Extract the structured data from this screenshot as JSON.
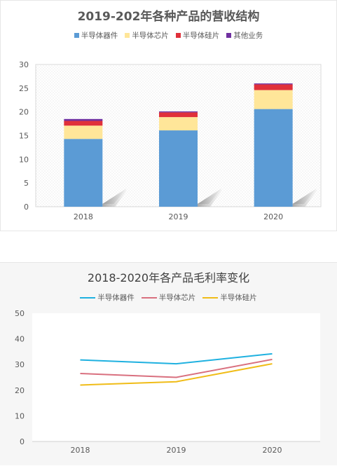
{
  "chart_data": [
    {
      "type": "bar",
      "stacked": true,
      "title": "2019-202年各种产品的营收结构",
      "categories": [
        "2018",
        "2019",
        "2020"
      ],
      "series": [
        {
          "name": "半导体器件",
          "color": "#5b9bd5",
          "values": [
            14.3,
            16.1,
            20.6
          ]
        },
        {
          "name": "半导体芯片",
          "color": "#ffe699",
          "values": [
            2.8,
            2.8,
            4.0
          ]
        },
        {
          "name": "半导体硅片",
          "color": "#e0303a",
          "values": [
            1.0,
            1.0,
            1.2
          ]
        },
        {
          "name": "其他业务",
          "color": "#7030a0",
          "values": [
            0.4,
            0.2,
            0.2
          ]
        }
      ],
      "ylim": [
        0,
        30
      ],
      "yticks": [
        "0",
        "5",
        "10",
        "15",
        "20",
        "25",
        "30"
      ],
      "legend": "top",
      "grid": false
    },
    {
      "type": "line",
      "title": "2018-2020年各产品毛利率变化",
      "categories": [
        "2018",
        "2019",
        "2020"
      ],
      "series": [
        {
          "name": "半导体器件",
          "color": "#1fb1e0",
          "values": [
            31.8,
            30.3,
            34.2
          ]
        },
        {
          "name": "半导体芯片",
          "color": "#d9707f",
          "values": [
            26.5,
            25.0,
            32.0
          ]
        },
        {
          "name": "半导体硅片",
          "color": "#f0bc17",
          "values": [
            22.0,
            23.3,
            30.3
          ]
        }
      ],
      "ylim": [
        0,
        50
      ],
      "yticks": [
        "0",
        "10",
        "20",
        "30",
        "40",
        "50"
      ],
      "legend": "top",
      "grid": false
    }
  ]
}
